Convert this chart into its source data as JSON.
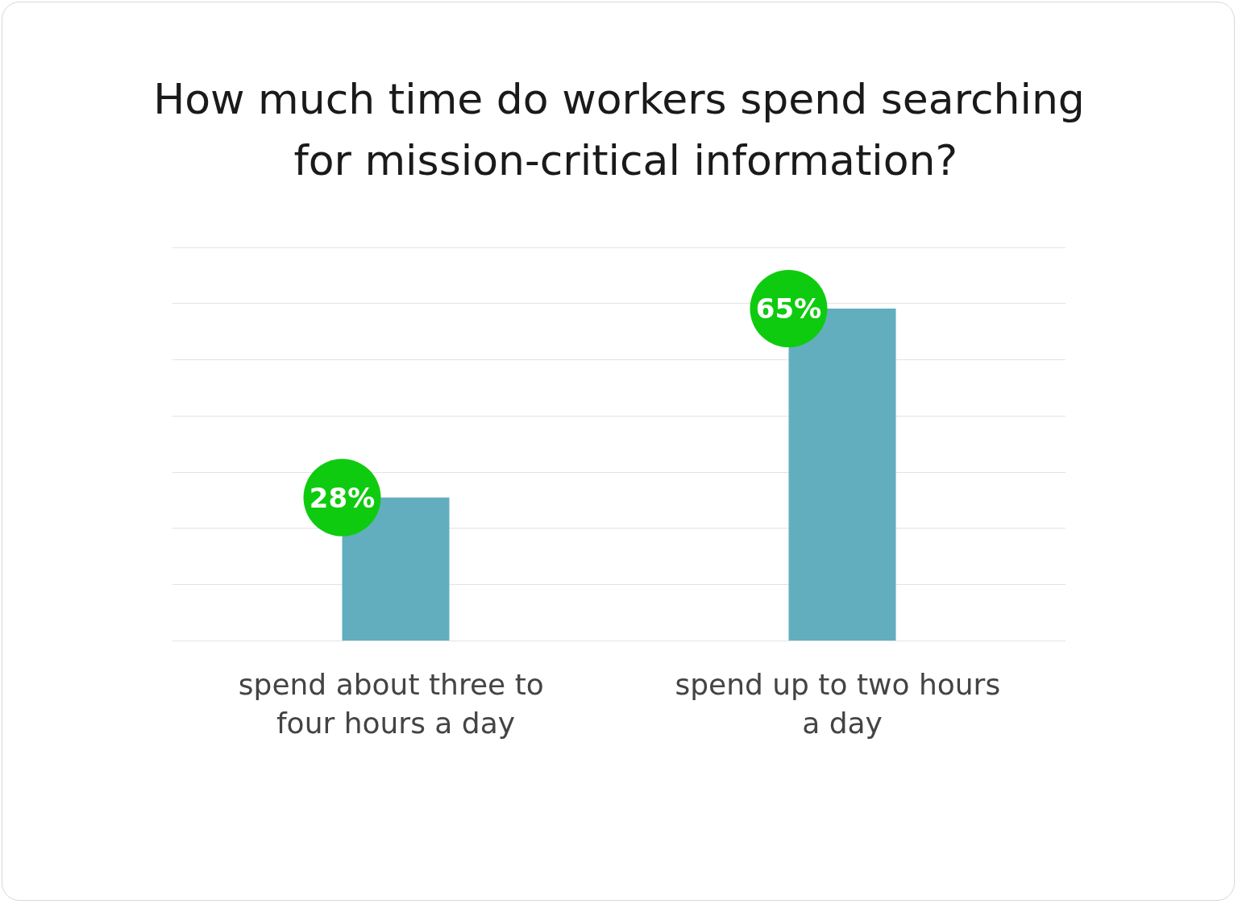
{
  "chart_data": {
    "type": "bar",
    "title": "How much time do workers spend searching for mission-critical information?",
    "categories": [
      "spend about three to four hours a day",
      "spend up to two hours a day"
    ],
    "values": [
      28,
      65
    ],
    "color": "#62aebf",
    "value_labels": [
      "28%",
      "65%"
    ],
    "ylim": [
      0,
      77
    ],
    "yticks": [
      {
        "value": 0,
        "label": null
      },
      {
        "value": 11,
        "label": null
      },
      {
        "value": 22,
        "label": null
      },
      {
        "value": 33,
        "label": null
      },
      {
        "value": 44,
        "label": null
      },
      {
        "value": 55,
        "label": null
      },
      {
        "value": 66,
        "label": null
      },
      {
        "value": 77,
        "label": null
      }
    ],
    "grid": "y",
    "tick_labels": "x"
  }
}
